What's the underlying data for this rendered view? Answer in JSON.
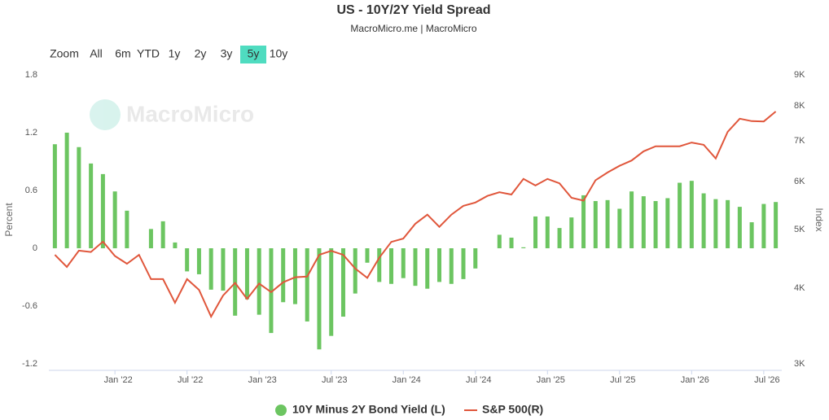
{
  "chart_data": {
    "type": "combo",
    "title": "US - 10Y/2Y Yield Spread",
    "subtitle": "MacroMicro.me | MacroMicro",
    "watermark": "MacroMicro",
    "range_selector": {
      "label": "Zoom",
      "buttons": [
        "All",
        "6m",
        "YTD",
        "1y",
        "2y",
        "3y",
        "5y",
        "10y"
      ],
      "selected": 6
    },
    "y_label": "Percent",
    "y2_label": "Index",
    "categories": [
      null,
      null,
      null,
      null,
      null,
      "Jan '22",
      null,
      null,
      null,
      null,
      null,
      "Jul '22",
      null,
      null,
      null,
      null,
      null,
      "Jan '23",
      null,
      null,
      null,
      null,
      null,
      "Jul '23",
      null,
      null,
      null,
      null,
      null,
      "Jan '24",
      null,
      null,
      null,
      null,
      null,
      "Jul '24",
      null,
      null,
      null,
      null,
      null,
      "Jan '25",
      null,
      null,
      null,
      null,
      null,
      "Jul '25",
      null,
      null,
      null,
      null,
      null,
      "Jan '26",
      null,
      null,
      null,
      null,
      null,
      "Jul '26",
      null
    ],
    "series": [
      {
        "name": "10Y Minus 2Y Bond Yield (L)",
        "type": "bar",
        "axis": "y",
        "color": "#6cc561",
        "values": [
          1.08,
          1.2,
          1.05,
          0.88,
          0.77,
          0.59,
          0.39,
          null,
          0.2,
          0.28,
          0.06,
          -0.24,
          -0.27,
          -0.43,
          -0.44,
          -0.7,
          -0.53,
          -0.69,
          -0.88,
          -0.56,
          -0.58,
          -0.76,
          -1.05,
          -0.91,
          -0.71,
          -0.47,
          -0.15,
          -0.35,
          -0.37,
          -0.31,
          -0.39,
          -0.42,
          -0.35,
          -0.37,
          -0.32,
          -0.21,
          null,
          0.14,
          0.11,
          0.01,
          0.33,
          0.33,
          0.21,
          0.32,
          0.55,
          0.49,
          0.5,
          0.41,
          0.59,
          0.54,
          0.49,
          0.52,
          0.68,
          0.7,
          0.57,
          0.51,
          0.5,
          0.43,
          0.27,
          0.46,
          0.48
        ]
      },
      {
        "name": "S&P 500(R)",
        "type": "line",
        "axis": "y2",
        "color": "#e0563b",
        "values": [
          4540,
          4336,
          4614,
          4590,
          4773,
          4520,
          4390,
          4540,
          4140,
          4140,
          3785,
          4140,
          3975,
          3590,
          3890,
          4080,
          3840,
          4070,
          3940,
          4090,
          4170,
          4180,
          4540,
          4610,
          4540,
          4310,
          4160,
          4490,
          4770,
          4830,
          5110,
          5290,
          5050,
          5290,
          5470,
          5540,
          5680,
          5760,
          5710,
          6060,
          5910,
          6060,
          5960,
          5640,
          5580,
          6030,
          6210,
          6370,
          6500,
          6730,
          6860,
          6860,
          6860,
          6960,
          6900,
          6550,
          7250,
          7620,
          7550,
          7540,
          7830
        ]
      }
    ],
    "ylim": [
      -1.2,
      1.8
    ],
    "yticks": [
      1.8,
      1.2,
      0.6,
      0,
      -0.6,
      -1.2
    ],
    "y2lim": [
      3000,
      9000
    ],
    "y2log": true,
    "y2ticks": [
      {
        "value": 9000,
        "label": "9K"
      },
      {
        "value": 8000,
        "label": "8K"
      },
      {
        "value": 7000,
        "label": "7K"
      },
      {
        "value": 6000,
        "label": "6K"
      },
      {
        "value": 5000,
        "label": "5K"
      },
      {
        "value": 4000,
        "label": "4K"
      },
      {
        "value": 3000,
        "label": "3K"
      }
    ],
    "grid": false,
    "legend": "bottom"
  }
}
